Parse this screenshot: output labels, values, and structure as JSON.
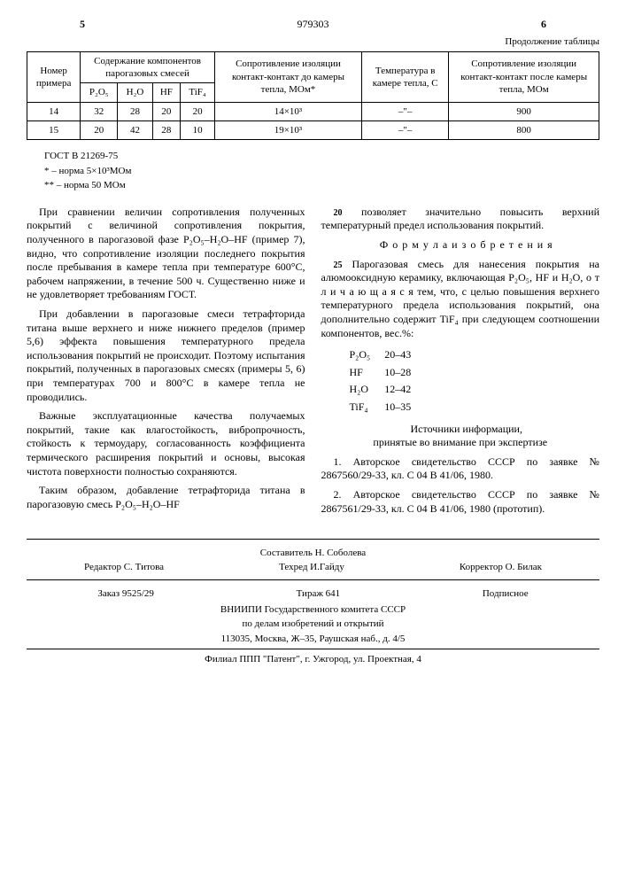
{
  "header": {
    "page_left": "5",
    "patent_number": "979303",
    "page_right": "6",
    "continuation": "Продолжение таблицы"
  },
  "table": {
    "col1": "Номер примера",
    "col2": "Содержание компонентов парогазовых смесей",
    "col3": "Сопротивление изоляции контакт-контакт до камеры тепла, МОм*",
    "col4": "Температура в камере тепла, С",
    "col5": "Сопротивление изоляции контакт-контакт после камеры тепла, МОм",
    "sub1": "P₂O₅",
    "sub2": "H₂O",
    "sub3": "HF",
    "sub4": "TiF₄",
    "rows": [
      {
        "n": "14",
        "p": "32",
        "h": "28",
        "hf": "20",
        "ti": "20",
        "r1": "14×10³",
        "t": "–\"–",
        "r2": "900"
      },
      {
        "n": "15",
        "p": "20",
        "h": "42",
        "hf": "28",
        "ti": "10",
        "r1": "19×10³",
        "t": "–\"–",
        "r2": "800"
      }
    ]
  },
  "notes": {
    "l1": "ГОСТ В 21269-75",
    "l2": "* – норма 5×10³МОм",
    "l3": "** – норма 50 МОм"
  },
  "left_col": {
    "p1": "При сравнении величин сопротивления полученных покрытий с величиной сопротивления покрытия, полученного в парогазовой фазе P₂O₅–H₂O–HF (пример 7), видно, что сопротивление изоляции последнего покрытия после пребывания в камере тепла при температуре 600°С, рабочем напряжении, в течение 500 ч. Существенно ниже и не удовлетворяет требованиям ГОСТ.",
    "p2": "При добавлении в парогазовые смеси тетрафторида титана выше верхнего и ниже нижнего пределов (пример 5,6) эффекта повышения температурного предела использования покрытий не происходит. Поэтому испытания покрытий, полученных в парогазовых смесях (примеры 5, 6) при температурах 700 и 800°С в камере тепла не проводились.",
    "p3": "Важные эксплуатационные качества получаемых покрытий, такие как влагостойкость, вибропрочность, стойкость к термоудару, согласованность коэффициента термического расширения покрытий и основы, высокая чистота поверхности полностью сохраняются.",
    "p4": "Таким образом, добавление тетрафторида титана в парогазовую смесь P₂O₅–H₂O–HF"
  },
  "right_col": {
    "p1": "позволяет значительно повысить верхний температурный предел использования покрытий.",
    "formula_title": "Ф о р м у л а   и з о б р е т е н и я",
    "p2": "Парогазовая смесь для нанесения покрытия на алюмооксидную керамику, включающая P₂O₅, HF и H₂O, о т л и ч а ю щ а я с я  тем, что, с целью повышения верхнего температурного предела использования покрытий, она дополнительно содержит TiF₄ при следующем соотношении компонентов, вес.%:",
    "comp": [
      {
        "n": "P₂O₅",
        "v": "20–43"
      },
      {
        "n": "HF",
        "v": "10–28"
      },
      {
        "n": "H₂O",
        "v": "12–42"
      },
      {
        "n": "TiF₄",
        "v": "10–35"
      }
    ],
    "sources_title": "Источники информации,\nпринятые во внимание при экспертизе",
    "s1": "1. Авторское свидетельство СССР по заявке № 2867560/29-33, кл. С 04 В 41/06, 1980.",
    "s2": "2. Авторское свидетельство СССР по заявке № 2867561/29-33, кл. С 04 В 41/06, 1980 (прототип)."
  },
  "line_markers": {
    "m20": "20",
    "m25": "25",
    "m30": "30",
    "m35": "35",
    "m40": "40"
  },
  "footer": {
    "compiler": "Составитель Н. Соболева",
    "editor": "Редактор С. Титова",
    "tech": "Техред И.Гайду",
    "corrector": "Корректор О. Билак",
    "order": "Заказ 9525/29",
    "tirazh": "Тираж 641",
    "sign": "Подписное",
    "org1": "ВНИИПИ Государственного комитета СССР",
    "org2": "по делам изобретений и открытий",
    "addr": "113035, Москва, Ж–35, Раушская наб., д. 4/5",
    "branch": "Филиал ППП \"Патент\", г. Ужгород, ул. Проектная, 4"
  }
}
